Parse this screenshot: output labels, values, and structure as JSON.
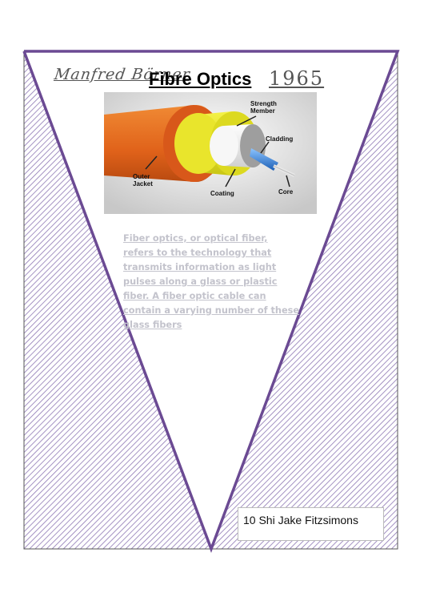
{
  "poster": {
    "author": "Manfred Börner",
    "title": "Fibre Optics",
    "year": "1965",
    "description": "Fiber optics, or optical fiber, refers to the technology that transmits information as light pulses along a glass or plastic fiber. A fiber optic cable can contain a varying number of these glass fibers",
    "student": "10 Shi Jake Fitzsimons"
  },
  "figure": {
    "labels": {
      "strength_member": "Strength Member",
      "cladding": "Cladding",
      "outer_jacket": "Outer Jacket",
      "coating": "Coating",
      "core": "Core"
    }
  },
  "colors": {
    "triangle_border": "#6b4a93",
    "hatch": "#8e78b4",
    "jacket": "#e3691a",
    "strength": "#e8e62a",
    "coating": "#f2f2f2",
    "core": "#3a86d8"
  }
}
